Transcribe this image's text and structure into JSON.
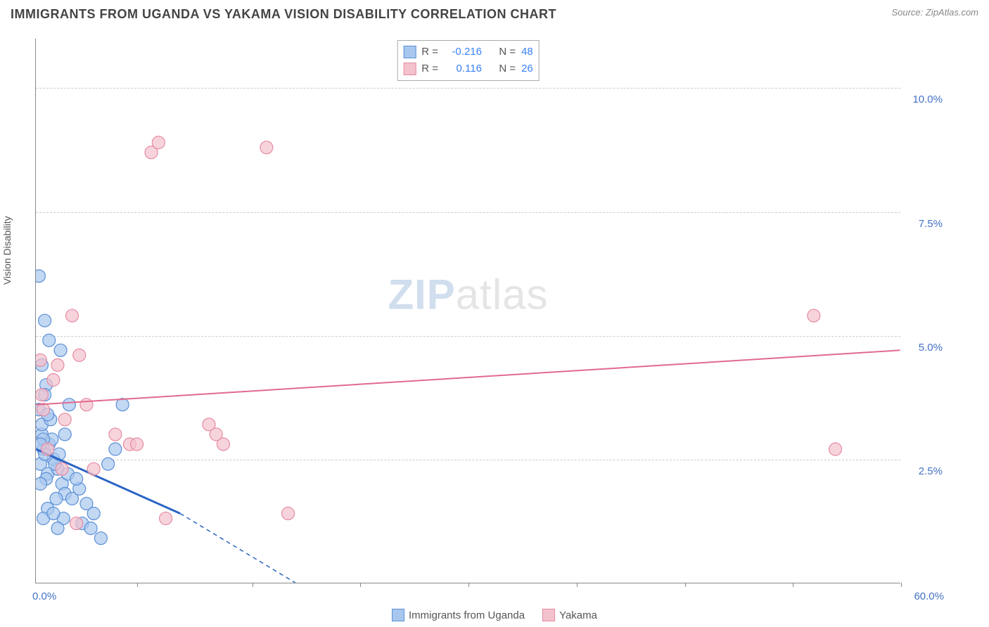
{
  "chart": {
    "type": "scatter",
    "title": "IMMIGRANTS FROM UGANDA VS YAKAMA VISION DISABILITY CORRELATION CHART",
    "source": "Source: ZipAtlas.com",
    "ylabel": "Vision Disability",
    "watermark_zip": "ZIP",
    "watermark_atlas": "atlas",
    "background_color": "#ffffff",
    "grid_color": "#cccccc",
    "axis_color": "#888888",
    "tick_label_color": "#4472c4",
    "xlim": [
      0,
      60
    ],
    "ylim": [
      0,
      11
    ],
    "y_ticks": [
      {
        "v": 2.5,
        "label": "2.5%"
      },
      {
        "v": 5.0,
        "label": "5.0%"
      },
      {
        "v": 7.5,
        "label": "7.5%"
      },
      {
        "v": 10.0,
        "label": "10.0%"
      }
    ],
    "x_tick_positions": [
      7,
      15,
      22.5,
      30,
      37.5,
      45,
      52.5,
      60
    ],
    "x_label_min": "0.0%",
    "x_label_max": "60.0%",
    "series": [
      {
        "name": "Immigrants from Uganda",
        "fill": "#a8c7ee",
        "stroke": "#5b8fd6",
        "marker_radius": 9,
        "R": "-0.216",
        "N": "48",
        "points": [
          [
            0.3,
            2.4
          ],
          [
            0.5,
            2.7
          ],
          [
            0.8,
            2.2
          ],
          [
            0.4,
            3.0
          ],
          [
            1.2,
            2.5
          ],
          [
            0.7,
            2.1
          ],
          [
            1.5,
            2.3
          ],
          [
            0.9,
            2.8
          ],
          [
            1.8,
            2.0
          ],
          [
            0.6,
            2.6
          ],
          [
            2.0,
            1.8
          ],
          [
            2.5,
            1.7
          ],
          [
            1.3,
            2.4
          ],
          [
            0.4,
            3.2
          ],
          [
            3.0,
            1.9
          ],
          [
            3.5,
            1.6
          ],
          [
            1.1,
            2.9
          ],
          [
            0.8,
            1.5
          ],
          [
            4.0,
            1.4
          ],
          [
            2.2,
            2.2
          ],
          [
            0.5,
            1.3
          ],
          [
            1.6,
            2.6
          ],
          [
            3.2,
            1.2
          ],
          [
            1.0,
            3.3
          ],
          [
            0.2,
            3.5
          ],
          [
            5.0,
            2.4
          ],
          [
            0.7,
            4.0
          ],
          [
            0.3,
            2.0
          ],
          [
            2.8,
            2.1
          ],
          [
            1.4,
            1.7
          ],
          [
            0.9,
            4.9
          ],
          [
            0.6,
            5.3
          ],
          [
            0.4,
            4.4
          ],
          [
            1.7,
            4.7
          ],
          [
            0.2,
            6.2
          ],
          [
            2.3,
            3.6
          ],
          [
            6.0,
            3.6
          ],
          [
            0.5,
            2.9
          ],
          [
            1.9,
            1.3
          ],
          [
            3.8,
            1.1
          ],
          [
            1.2,
            1.4
          ],
          [
            0.8,
            3.4
          ],
          [
            4.5,
            0.9
          ],
          [
            2.0,
            3.0
          ],
          [
            0.3,
            2.8
          ],
          [
            1.5,
            1.1
          ],
          [
            5.5,
            2.7
          ],
          [
            0.6,
            3.8
          ]
        ],
        "trend": {
          "x1": 0,
          "y1": 2.7,
          "x2": 10,
          "y2": 1.4,
          "color": "#2b65c4",
          "width": 3,
          "solid_until_x": 10,
          "dash_to_x": 18,
          "dash_y2": 0
        }
      },
      {
        "name": "Yakama",
        "fill": "#f4c2cd",
        "stroke": "#e68aa2",
        "marker_radius": 9,
        "R": "0.116",
        "N": "26",
        "points": [
          [
            0.5,
            3.5
          ],
          [
            1.2,
            4.1
          ],
          [
            2.0,
            3.3
          ],
          [
            0.8,
            2.7
          ],
          [
            3.0,
            4.6
          ],
          [
            4.0,
            2.3
          ],
          [
            1.5,
            4.4
          ],
          [
            5.5,
            3.0
          ],
          [
            6.5,
            2.8
          ],
          [
            2.5,
            5.4
          ],
          [
            8.0,
            8.7
          ],
          [
            8.5,
            8.9
          ],
          [
            16.0,
            8.8
          ],
          [
            0.3,
            4.5
          ],
          [
            2.8,
            1.2
          ],
          [
            12.0,
            3.2
          ],
          [
            12.5,
            3.0
          ],
          [
            13.0,
            2.8
          ],
          [
            9.0,
            1.3
          ],
          [
            17.5,
            1.4
          ],
          [
            55.5,
            2.7
          ],
          [
            54.0,
            5.4
          ],
          [
            0.4,
            3.8
          ],
          [
            1.8,
            2.3
          ],
          [
            3.5,
            3.6
          ],
          [
            7.0,
            2.8
          ]
        ],
        "trend": {
          "x1": 0,
          "y1": 3.6,
          "x2": 60,
          "y2": 4.7,
          "color": "#e26a8e",
          "width": 2
        }
      }
    ],
    "title_fontsize": 18,
    "tick_fontsize": 15
  }
}
